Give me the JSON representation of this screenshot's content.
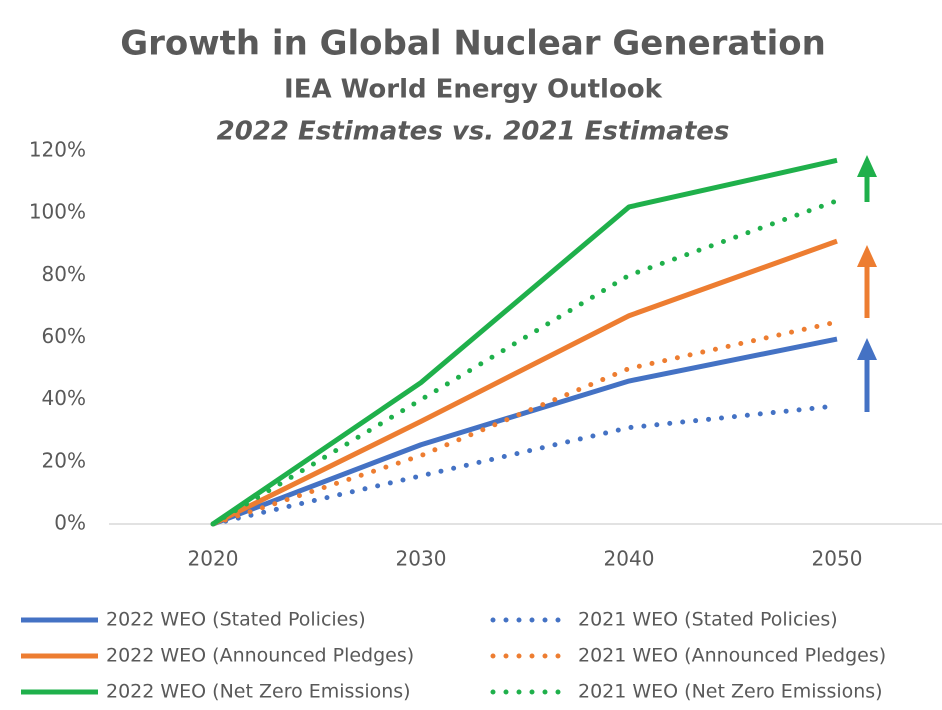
{
  "chart_data": {
    "type": "line",
    "title": "Growth in Global Nuclear Generation",
    "subtitle": "IEA World Energy Outlook",
    "subtitle2": "2022 Estimates vs. 2021 Estimates",
    "categories": [
      "2020",
      "2030",
      "2040",
      "2050"
    ],
    "ylim": [
      0,
      120
    ],
    "yticks": [
      {
        "value": 0,
        "label": "0%"
      },
      {
        "value": 20,
        "label": "20%"
      },
      {
        "value": 40,
        "label": "40%"
      },
      {
        "value": 60,
        "label": "60%"
      },
      {
        "value": 80,
        "label": "80%"
      },
      {
        "value": 100,
        "label": "100%"
      },
      {
        "value": 120,
        "label": "120%"
      }
    ],
    "grid": false,
    "series": [
      {
        "name": "2022 WEO (Stated Policies)",
        "color": "#4472c4",
        "style": "solid",
        "values": [
          0,
          25.5,
          46,
          59.5
        ]
      },
      {
        "name": "2021 WEO (Stated Policies)",
        "color": "#4472c4",
        "style": "dotted",
        "values": [
          0,
          15.5,
          31,
          38
        ]
      },
      {
        "name": "2022 WEO (Announced Pledges)",
        "color": "#ed7d31",
        "style": "solid",
        "values": [
          0,
          33,
          67,
          91
        ]
      },
      {
        "name": "2021 WEO (Announced Pledges)",
        "color": "#ed7d31",
        "style": "dotted",
        "values": [
          0,
          22,
          50,
          65
        ]
      },
      {
        "name": "2022 WEO (Net Zero Emissions)",
        "color": "#1fb04b",
        "style": "solid",
        "values": [
          0,
          45.5,
          102,
          117
        ]
      },
      {
        "name": "2021 WEO (Net Zero Emissions)",
        "color": "#1fb04b",
        "style": "dotted",
        "values": [
          0,
          40,
          80,
          104
        ]
      }
    ]
  }
}
